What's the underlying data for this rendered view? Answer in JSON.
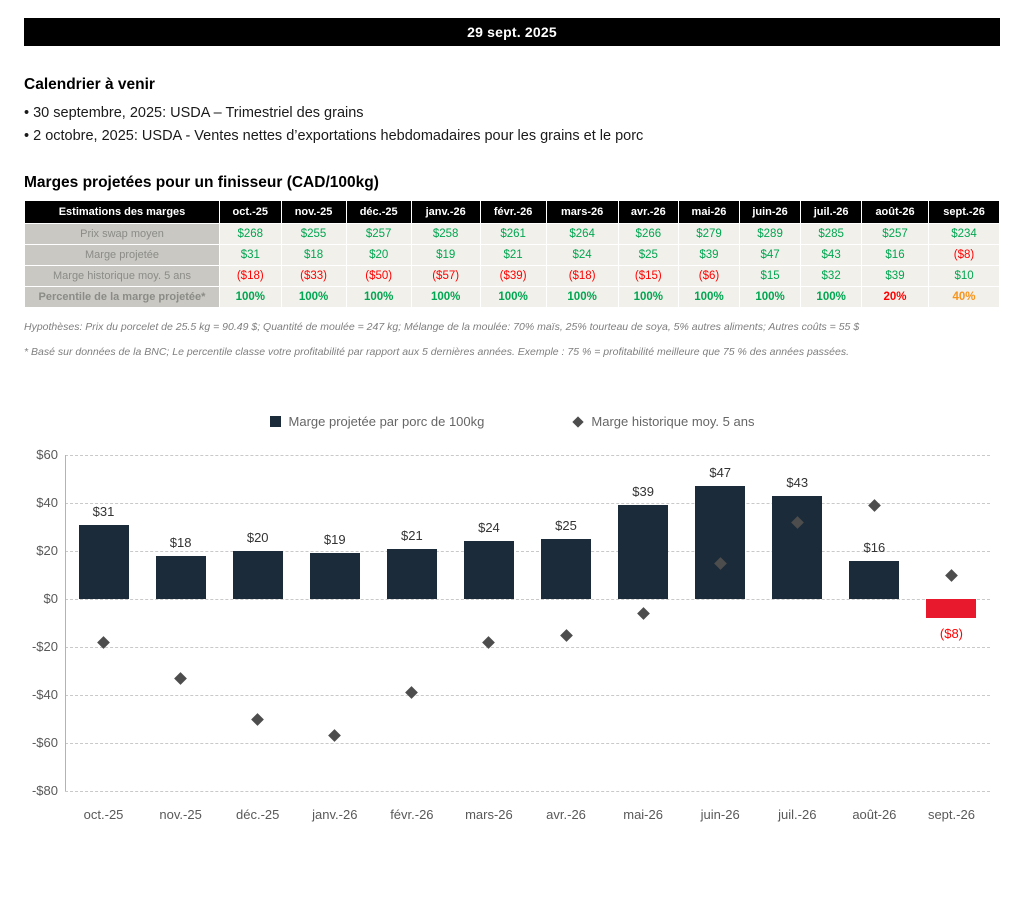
{
  "colors": {
    "banner_bg": "#000000",
    "banner_text": "#ffffff",
    "green": "#00a651",
    "red": "#ff0000",
    "orange": "#f7941d",
    "bar": "#1c2b39",
    "negative_bar": "#e8192c",
    "diamond": "#4d4d4d"
  },
  "banner": {
    "date": "29 sept. 2025"
  },
  "calendar": {
    "title": "Calendrier à venir",
    "items": [
      "• 30 septembre, 2025: USDA – Trimestriel des grains",
      "• 2 octobre, 2025: USDA - Ventes nettes d’exportations hebdomadaires pour les grains et le porc"
    ]
  },
  "table": {
    "title": "Marges projetées pour un finisseur (CAD/100kg)",
    "header": [
      "Estimations des marges",
      "oct.-25",
      "nov.-25",
      "déc.-25",
      "janv.-26",
      "févr.-26",
      "mars-26",
      "avr.-26",
      "mai-26",
      "juin-26",
      "juil.-26",
      "août-26",
      "sept.-26"
    ],
    "rows": [
      {
        "label": "Prix swap moyen",
        "values": [
          "$268",
          "$255",
          "$257",
          "$258",
          "$261",
          "$264",
          "$266",
          "$279",
          "$289",
          "$285",
          "$257",
          "$234"
        ],
        "colors": [
          "g",
          "g",
          "g",
          "g",
          "g",
          "g",
          "g",
          "g",
          "g",
          "g",
          "g",
          "g"
        ],
        "bold": false
      },
      {
        "label": "Marge projetée",
        "values": [
          "$31",
          "$18",
          "$20",
          "$19",
          "$21",
          "$24",
          "$25",
          "$39",
          "$47",
          "$43",
          "$16",
          "($8)"
        ],
        "colors": [
          "g",
          "g",
          "g",
          "g",
          "g",
          "g",
          "g",
          "g",
          "g",
          "g",
          "g",
          "r"
        ],
        "bold": false
      },
      {
        "label": "Marge historique moy. 5 ans",
        "values": [
          "($18)",
          "($33)",
          "($50)",
          "($57)",
          "($39)",
          "($18)",
          "($15)",
          "($6)",
          "$15",
          "$32",
          "$39",
          "$10"
        ],
        "colors": [
          "r",
          "r",
          "r",
          "r",
          "r",
          "r",
          "r",
          "r",
          "g",
          "g",
          "g",
          "g"
        ],
        "bold": false
      },
      {
        "label": "Percentile de la marge projetée*",
        "values": [
          "100%",
          "100%",
          "100%",
          "100%",
          "100%",
          "100%",
          "100%",
          "100%",
          "100%",
          "100%",
          "20%",
          "40%"
        ],
        "colors": [
          "g",
          "g",
          "g",
          "g",
          "g",
          "g",
          "g",
          "g",
          "g",
          "g",
          "r",
          "o"
        ],
        "bold": true
      }
    ],
    "footnote_assumptions": "Hypothèses: Prix du porcelet de 25.5 kg = 90.49 $; Quantité de moulée = 247 kg; Mélange de la moulée: 70% maïs, 25% tourteau de soya, 5% autres aliments; Autres coûts = 55 $",
    "footnote_percentile": "* Basé sur données de la BNC; Le percentile classe votre profitabilité par rapport aux 5 dernières années. Exemple : 75 % = profitabilité meilleure que 75 % des années passées."
  },
  "chart_data": {
    "type": "bar",
    "categories": [
      "oct.-25",
      "nov.-25",
      "déc.-25",
      "janv.-26",
      "févr.-26",
      "mars-26",
      "avr.-26",
      "mai-26",
      "juin-26",
      "juil.-26",
      "août-26",
      "sept.-26"
    ],
    "series": [
      {
        "name": "Marge projetée par porc de 100kg",
        "type": "bar",
        "values": [
          31,
          18,
          20,
          19,
          21,
          24,
          25,
          39,
          47,
          43,
          16,
          -8
        ],
        "labels": [
          "$31",
          "$18",
          "$20",
          "$19",
          "$21",
          "$24",
          "$25",
          "$39",
          "$47",
          "$43",
          "$16",
          "($8)"
        ]
      },
      {
        "name": "Marge historique moy. 5 ans",
        "type": "scatter-diamond",
        "values": [
          -18,
          -33,
          -50,
          -57,
          -39,
          -18,
          -15,
          -6,
          15,
          32,
          39,
          10
        ]
      }
    ],
    "title": "",
    "xlabel": "",
    "ylabel": "",
    "ylim": [
      -80,
      60
    ],
    "ytick_step": 20,
    "ytick_labels": [
      "$60",
      "$40",
      "$20",
      "$0",
      "-$20",
      "-$40",
      "-$60",
      "-$80"
    ],
    "grid": "dashed-horizontal",
    "legend_position": "top-center"
  }
}
